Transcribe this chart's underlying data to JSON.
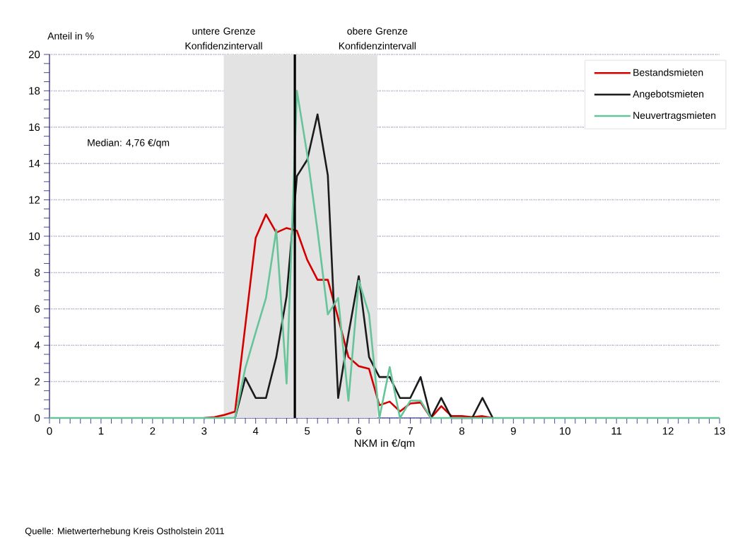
{
  "chart_data": {
    "type": "line",
    "xlabel": "NKM in €/qm",
    "ylabel": "Anteil in %",
    "x": [
      0,
      0.2,
      0.4,
      0.6,
      0.8,
      1,
      1.2,
      1.4,
      1.6,
      1.8,
      2,
      2.2,
      2.4,
      2.6,
      2.8,
      3,
      3.2,
      3.4,
      3.6,
      3.8,
      4,
      4.2,
      4.4,
      4.6,
      4.8,
      5,
      5.2,
      5.4,
      5.6,
      5.8,
      6,
      6.2,
      6.4,
      6.6,
      6.8,
      7,
      7.2,
      7.4,
      7.6,
      7.8,
      8,
      8.2,
      8.4,
      8.6,
      8.8,
      9,
      9.2,
      9.4,
      9.6,
      9.8,
      10,
      10.2,
      10.4,
      10.6,
      10.8,
      11,
      11.2,
      11.4,
      11.6,
      11.8,
      12,
      12.2,
      12.4,
      12.6,
      12.8,
      13
    ],
    "series": [
      {
        "name": "Bestandsmieten",
        "color": "#d40000",
        "values": [
          null,
          null,
          null,
          null,
          null,
          null,
          null,
          null,
          null,
          null,
          null,
          null,
          null,
          null,
          null,
          0,
          0.05,
          0.17,
          0.35,
          5.1,
          9.9,
          11.2,
          10.2,
          10.45,
          10.3,
          8.7,
          7.6,
          7.6,
          5.5,
          3.35,
          2.85,
          2.7,
          0.7,
          0.9,
          0.36,
          0.8,
          0.85,
          0,
          0.65,
          0.1,
          0.1,
          0.05,
          0.1,
          0,
          null,
          null,
          null,
          null,
          null,
          null,
          null,
          null,
          null,
          null,
          null,
          null,
          null,
          null,
          null,
          null,
          null,
          null,
          null,
          null,
          null,
          null
        ]
      },
      {
        "name": "Angebotsmieten",
        "color": "#1a1a1a",
        "values": [
          null,
          null,
          null,
          null,
          null,
          null,
          null,
          null,
          null,
          null,
          null,
          null,
          null,
          null,
          null,
          null,
          null,
          null,
          0,
          2.2,
          1.1,
          1.1,
          3.35,
          6.7,
          13.3,
          14.2,
          16.7,
          13.35,
          1.1,
          4.6,
          7.8,
          3.35,
          2.25,
          2.25,
          1.1,
          1.1,
          2.25,
          0,
          1.1,
          0,
          0,
          0,
          1.1,
          0,
          null,
          null,
          null,
          null,
          null,
          null,
          null,
          null,
          null,
          null,
          null,
          null,
          null,
          null,
          null,
          null,
          null,
          null,
          null,
          null,
          null,
          null
        ]
      },
      {
        "name": "Neuvertragsmieten",
        "color": "#66c499",
        "values": [
          0,
          0,
          0,
          0,
          0,
          0,
          0,
          0,
          0,
          0,
          0,
          0,
          0,
          0,
          0,
          0,
          0,
          0,
          0,
          2.75,
          4.7,
          6.6,
          10.35,
          1.9,
          18.0,
          14.5,
          10.3,
          5.7,
          6.6,
          0.95,
          7.55,
          5.7,
          0,
          2.8,
          0,
          0.95,
          0.95,
          0,
          0,
          0,
          0,
          0,
          0,
          0,
          0,
          0,
          0,
          0,
          0,
          0,
          0,
          0,
          0,
          0,
          0,
          0,
          0,
          0,
          0,
          0,
          0,
          0,
          0,
          0,
          0,
          0
        ]
      }
    ],
    "xlim": [
      0,
      13
    ],
    "ylim": [
      0,
      20
    ],
    "xticks": [
      0,
      1,
      2,
      3,
      4,
      5,
      6,
      7,
      8,
      9,
      10,
      11,
      12,
      13
    ],
    "yticks": [
      0,
      2,
      4,
      6,
      8,
      10,
      12,
      14,
      16,
      18,
      20
    ],
    "grid": "y",
    "legend": "top right",
    "marker": "none",
    "line_style": "solid",
    "bands": [
      {
        "axis": "x",
        "from": 3.38,
        "to": 6.36,
        "color": "#e3e3e3"
      }
    ],
    "ref_lines": [
      {
        "axis": "x",
        "value": 4.76,
        "color": "#000000"
      }
    ],
    "annotations": [
      {
        "text": "untere Grenze Konfidenzintervall",
        "x": 3.38,
        "y": 20
      },
      {
        "text": "obere Grenze Konfidenzintervall",
        "x": 6.36,
        "y": 20
      },
      "Median: 4,76 €/qm",
      "Quelle: Mietwerterhebung Kreis Ostholstein 2011"
    ]
  }
}
